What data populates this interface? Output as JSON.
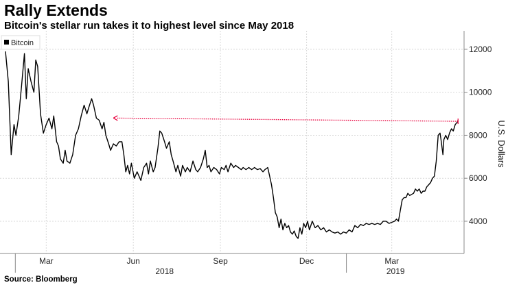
{
  "header": {
    "title": "Rally Extends",
    "subtitle": "Bitcoin's stellar run takes it to highest level since May 2018"
  },
  "footer": {
    "source": "Source: Bloomberg"
  },
  "colors": {
    "line": "#000000",
    "arrow": "#e8003d",
    "grid": "#d9d9d9",
    "axis": "#888888"
  },
  "chart_data": {
    "type": "line",
    "title": "Rally Extends",
    "subtitle": "Bitcoin's stellar run takes it to highest level since May 2018",
    "ylabel": "U.S. Dollars",
    "ylim": [
      2500,
      12700
    ],
    "yticks": [
      4000,
      6000,
      8000,
      10000,
      12000
    ],
    "ytick_labels": [
      "4000",
      "6000",
      "8000",
      "10000",
      "12000"
    ],
    "xlim": [
      0,
      480
    ],
    "xticks": [
      {
        "x": 43,
        "label": "Mar"
      },
      {
        "x": 135,
        "label": "Jun"
      },
      {
        "x": 227,
        "label": "Sep"
      },
      {
        "x": 318,
        "label": "Dec"
      },
      {
        "x": 408,
        "label": "Mar"
      }
    ],
    "year_labels": [
      {
        "x": 168,
        "label": "2018"
      },
      {
        "x": 412,
        "label": "2019"
      }
    ],
    "grid": true,
    "legend": {
      "position": "top-left",
      "entries": [
        "Bitcoin"
      ]
    },
    "annotation": {
      "type": "arrow",
      "from": {
        "x": 478,
        "y": 8650
      },
      "to": {
        "x": 114,
        "y": 8800
      }
    },
    "series": [
      {
        "name": "Bitcoin",
        "points": [
          [
            0,
            11900
          ],
          [
            3,
            10500
          ],
          [
            6,
            7100
          ],
          [
            9,
            8500
          ],
          [
            11,
            8000
          ],
          [
            14,
            8900
          ],
          [
            17,
            10300
          ],
          [
            20,
            11800
          ],
          [
            22,
            9700
          ],
          [
            24,
            11100
          ],
          [
            27,
            10500
          ],
          [
            30,
            10000
          ],
          [
            32,
            11500
          ],
          [
            34,
            11200
          ],
          [
            37,
            9000
          ],
          [
            40,
            8100
          ],
          [
            43,
            8500
          ],
          [
            46,
            8800
          ],
          [
            49,
            8300
          ],
          [
            51,
            8900
          ],
          [
            54,
            7700
          ],
          [
            56,
            7500
          ],
          [
            58,
            6900
          ],
          [
            61,
            6700
          ],
          [
            63,
            7300
          ],
          [
            65,
            6800
          ],
          [
            68,
            6700
          ],
          [
            71,
            7100
          ],
          [
            74,
            8000
          ],
          [
            77,
            8300
          ],
          [
            80,
            8900
          ],
          [
            83,
            9400
          ],
          [
            86,
            9000
          ],
          [
            88,
            9300
          ],
          [
            91,
            9700
          ],
          [
            93,
            9400
          ],
          [
            96,
            8800
          ],
          [
            99,
            8700
          ],
          [
            102,
            8300
          ],
          [
            104,
            8600
          ],
          [
            106,
            8000
          ],
          [
            109,
            7600
          ],
          [
            111,
            7300
          ],
          [
            114,
            7600
          ],
          [
            117,
            7500
          ],
          [
            120,
            7700
          ],
          [
            123,
            7700
          ],
          [
            125,
            7100
          ],
          [
            127,
            6300
          ],
          [
            129,
            6600
          ],
          [
            131,
            6200
          ],
          [
            133,
            6700
          ],
          [
            136,
            6000
          ],
          [
            139,
            6300
          ],
          [
            141,
            6100
          ],
          [
            143,
            5900
          ],
          [
            146,
            6500
          ],
          [
            149,
            6700
          ],
          [
            151,
            6200
          ],
          [
            153,
            6800
          ],
          [
            156,
            6300
          ],
          [
            158,
            6500
          ],
          [
            161,
            7400
          ],
          [
            163,
            8200
          ],
          [
            165,
            8100
          ],
          [
            168,
            7700
          ],
          [
            170,
            7400
          ],
          [
            173,
            7700
          ],
          [
            175,
            7100
          ],
          [
            177,
            6800
          ],
          [
            180,
            6300
          ],
          [
            182,
            6600
          ],
          [
            185,
            6100
          ],
          [
            187,
            6600
          ],
          [
            190,
            6300
          ],
          [
            192,
            6500
          ],
          [
            195,
            6300
          ],
          [
            198,
            6800
          ],
          [
            201,
            6400
          ],
          [
            203,
            6300
          ],
          [
            206,
            6500
          ],
          [
            209,
            6900
          ],
          [
            211,
            7300
          ],
          [
            213,
            6500
          ],
          [
            215,
            6600
          ],
          [
            217,
            6300
          ],
          [
            220,
            6500
          ],
          [
            223,
            6400
          ],
          [
            226,
            6200
          ],
          [
            228,
            6500
          ],
          [
            231,
            6400
          ],
          [
            233,
            6600
          ],
          [
            235,
            6300
          ],
          [
            238,
            6700
          ],
          [
            241,
            6500
          ],
          [
            243,
            6600
          ],
          [
            246,
            6500
          ],
          [
            249,
            6400
          ],
          [
            251,
            6500
          ],
          [
            254,
            6400
          ],
          [
            257,
            6500
          ],
          [
            260,
            6400
          ],
          [
            263,
            6500
          ],
          [
            266,
            6400
          ],
          [
            269,
            6450
          ],
          [
            272,
            6300
          ],
          [
            274,
            6400
          ],
          [
            277,
            6500
          ],
          [
            279,
            6100
          ],
          [
            281,
            5700
          ],
          [
            283,
            5100
          ],
          [
            285,
            4400
          ],
          [
            287,
            4200
          ],
          [
            289,
            3700
          ],
          [
            291,
            4100
          ],
          [
            293,
            3600
          ],
          [
            295,
            3900
          ],
          [
            297,
            3700
          ],
          [
            299,
            3800
          ],
          [
            301,
            3500
          ],
          [
            303,
            3400
          ],
          [
            305,
            3550
          ],
          [
            307,
            3300
          ],
          [
            309,
            3200
          ],
          [
            311,
            3700
          ],
          [
            313,
            3400
          ],
          [
            315,
            3900
          ],
          [
            317,
            3700
          ],
          [
            319,
            4000
          ],
          [
            321,
            3600
          ],
          [
            324,
            4000
          ],
          [
            327,
            3700
          ],
          [
            330,
            3800
          ],
          [
            333,
            3600
          ],
          [
            336,
            3700
          ],
          [
            339,
            3500
          ],
          [
            342,
            3600
          ],
          [
            345,
            3500
          ],
          [
            348,
            3450
          ],
          [
            351,
            3500
          ],
          [
            354,
            3400
          ],
          [
            357,
            3500
          ],
          [
            360,
            3450
          ],
          [
            363,
            3600
          ],
          [
            366,
            3500
          ],
          [
            369,
            3800
          ],
          [
            372,
            3700
          ],
          [
            375,
            3850
          ],
          [
            378,
            3800
          ],
          [
            381,
            3900
          ],
          [
            384,
            3850
          ],
          [
            387,
            3900
          ],
          [
            390,
            3850
          ],
          [
            393,
            3900
          ],
          [
            396,
            3850
          ],
          [
            399,
            4000
          ],
          [
            402,
            4000
          ],
          [
            405,
            3900
          ],
          [
            408,
            3950
          ],
          [
            411,
            4000
          ],
          [
            413,
            4100
          ],
          [
            415,
            4000
          ],
          [
            417,
            4500
          ],
          [
            419,
            5000
          ],
          [
            421,
            5100
          ],
          [
            423,
            5100
          ],
          [
            425,
            5300
          ],
          [
            427,
            5200
          ],
          [
            429,
            5250
          ],
          [
            431,
            5300
          ],
          [
            433,
            5500
          ],
          [
            435,
            5400
          ],
          [
            437,
            5500
          ],
          [
            439,
            5300
          ],
          [
            441,
            5400
          ],
          [
            443,
            5400
          ],
          [
            445,
            5600
          ],
          [
            447,
            5700
          ],
          [
            449,
            5800
          ],
          [
            451,
            6000
          ],
          [
            453,
            6100
          ],
          [
            455,
            6800
          ],
          [
            457,
            8000
          ],
          [
            459,
            8100
          ],
          [
            460,
            7800
          ],
          [
            462,
            7100
          ],
          [
            463,
            7800
          ],
          [
            465,
            8000
          ],
          [
            467,
            7800
          ],
          [
            469,
            8100
          ],
          [
            471,
            8300
          ],
          [
            473,
            8200
          ],
          [
            475,
            8500
          ],
          [
            477,
            8600
          ],
          [
            478,
            8700
          ]
        ]
      }
    ]
  }
}
